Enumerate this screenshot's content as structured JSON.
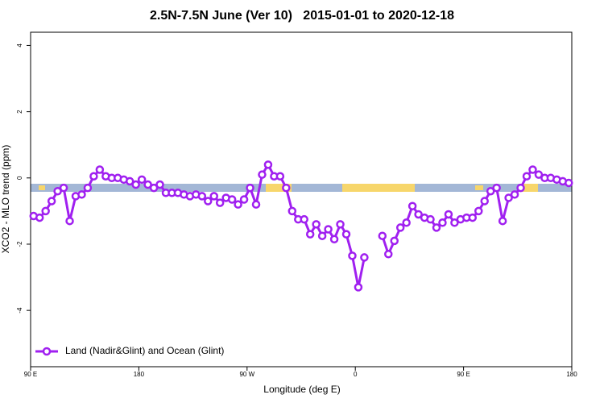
{
  "chart_data": {
    "type": "line",
    "title": "2.5N-7.5N June (Ver 10)   2015-01-01 to 2020-12-18",
    "x_label": "Longitude (deg E)",
    "y_label": "XCO2 - MLO trend (ppm)",
    "xlim": [
      90,
      540
    ],
    "xticks": [
      {
        "value": 90,
        "label": "90 E"
      },
      180,
      {
        "value": 270,
        "label": "90 W"
      },
      {
        "value": 360,
        "label": "0"
      },
      {
        "value": 450,
        "label": "90 E"
      },
      {
        "value": 540,
        "label": "180"
      }
    ],
    "ylim": [
      -5.7,
      4.4
    ],
    "yticks": [
      -4,
      -2,
      0,
      2,
      4
    ],
    "legend_position": "bottom-left",
    "x": [
      92.5,
      97.5,
      102.5,
      107.5,
      112.5,
      117.5,
      122.5,
      127.5,
      132.5,
      137.5,
      142.5,
      147.5,
      152.5,
      157.5,
      162.5,
      167.5,
      172.5,
      177.5,
      182.5,
      187.5,
      192.5,
      197.5,
      202.5,
      207.5,
      212.5,
      217.5,
      222.5,
      227.5,
      232.5,
      237.5,
      242.5,
      247.5,
      252.5,
      257.5,
      262.5,
      267.5,
      272.5,
      277.5,
      282.5,
      287.5,
      292.5,
      297.5,
      302.5,
      307.5,
      312.5,
      317.5,
      322.5,
      327.5,
      332.5,
      337.5,
      342.5,
      347.5,
      352.5,
      357.5,
      362.5,
      367.5,
      372.5,
      377.5,
      382.5,
      387.5,
      392.5,
      397.5,
      402.5,
      407.5,
      412.5,
      417.5,
      422.5,
      427.5,
      432.5,
      437.5,
      442.5,
      447.5,
      452.5,
      457.5,
      462.5,
      467.5,
      472.5,
      477.5,
      482.5,
      487.5,
      492.5,
      497.5,
      502.5,
      507.5,
      512.5,
      517.5,
      522.5,
      527.5,
      532.5,
      537.5
    ],
    "series": [
      {
        "name": "Land (Nadir&Glint) and Ocean (Glint)",
        "color": "#a020f0",
        "values": [
          -1.15,
          -1.2,
          -1.0,
          -0.7,
          -0.4,
          -0.3,
          -1.3,
          -0.55,
          -0.5,
          -0.3,
          0.05,
          0.25,
          0.05,
          0,
          0,
          -0.05,
          -0.1,
          -0.2,
          -0.05,
          -0.2,
          -0.3,
          -0.2,
          -0.45,
          -0.45,
          -0.45,
          -0.5,
          -0.55,
          -0.5,
          -0.55,
          -0.7,
          -0.55,
          -0.75,
          -0.6,
          -0.65,
          -0.8,
          -0.65,
          -0.3,
          -0.8,
          0.1,
          0.4,
          0.05,
          0.05,
          -0.3,
          -1.0,
          -1.25,
          -1.25,
          -1.7,
          -1.4,
          -1.75,
          -1.55,
          -1.85,
          -1.4,
          -1.7,
          -2.35,
          -3.3,
          -2.4,
          null,
          null,
          -1.75,
          -2.3,
          -1.9,
          -1.5,
          -1.35,
          -0.85,
          -1.1,
          -1.2,
          -1.25,
          -1.5,
          -1.35,
          -1.1,
          -1.35,
          -1.25,
          -1.2,
          -1.2,
          -1.0,
          -0.7,
          -0.4,
          -0.3,
          -1.3,
          -0.6,
          -0.5,
          -0.3,
          0.05,
          0.25,
          0.1,
          0,
          0,
          -0.05,
          -0.1,
          -0.15
        ]
      }
    ]
  }
}
